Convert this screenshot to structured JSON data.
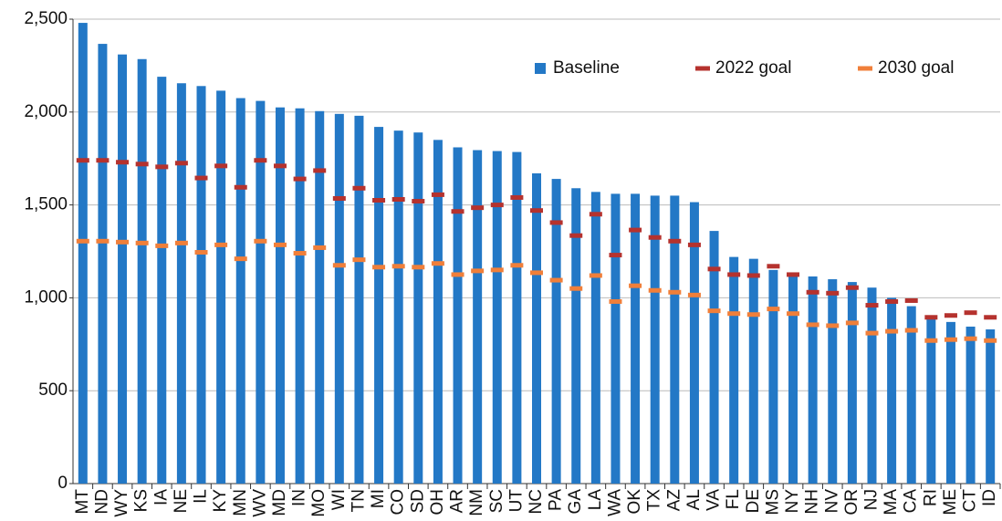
{
  "chart_data": {
    "type": "bar",
    "categories": [
      "MT",
      "ND",
      "WY",
      "KS",
      "IA",
      "NE",
      "IL",
      "KY",
      "MN",
      "WV",
      "MD",
      "IN",
      "MO",
      "WI",
      "TN",
      "MI",
      "CO",
      "SD",
      "OH",
      "AR",
      "NM",
      "SC",
      "UT",
      "NC",
      "PA",
      "GA",
      "LA",
      "WA",
      "OK",
      "TX",
      "AZ",
      "AL",
      "VA",
      "FL",
      "DE",
      "MS",
      "NY",
      "NH",
      "NV",
      "OR",
      "NJ",
      "MA",
      "CA",
      "RI",
      "ME",
      "CT",
      "ID"
    ],
    "series": [
      {
        "name": "Baseline",
        "mark": "bar",
        "color": "#2378c6",
        "values": [
          2480,
          2367,
          2310,
          2285,
          2190,
          2155,
          2140,
          2115,
          2075,
          2060,
          2025,
          2020,
          2005,
          1990,
          1980,
          1920,
          1900,
          1890,
          1850,
          1810,
          1795,
          1790,
          1785,
          1670,
          1640,
          1590,
          1570,
          1560,
          1560,
          1550,
          1550,
          1515,
          1360,
          1220,
          1210,
          1150,
          1125,
          1115,
          1100,
          1085,
          1055,
          1000,
          955,
          905,
          870,
          845,
          830
        ]
      },
      {
        "name": "2022 goal",
        "mark": "dash",
        "color": "#b5322e",
        "values": [
          1740,
          1740,
          1730,
          1720,
          1705,
          1725,
          1645,
          1710,
          1595,
          1740,
          1710,
          1640,
          1685,
          1535,
          1590,
          1525,
          1530,
          1520,
          1555,
          1465,
          1485,
          1500,
          1540,
          1470,
          1405,
          1335,
          1450,
          1230,
          1365,
          1325,
          1305,
          1285,
          1155,
          1125,
          1120,
          1170,
          1125,
          1030,
          1025,
          1055,
          960,
          980,
          985,
          895,
          905,
          920,
          895
        ]
      },
      {
        "name": "2030 goal",
        "mark": "dash",
        "color": "#f07f3a",
        "values": [
          1305,
          1305,
          1300,
          1295,
          1280,
          1295,
          1245,
          1285,
          1210,
          1305,
          1285,
          1240,
          1270,
          1175,
          1205,
          1165,
          1170,
          1165,
          1185,
          1125,
          1145,
          1150,
          1175,
          1135,
          1095,
          1050,
          1120,
          980,
          1065,
          1040,
          1030,
          1015,
          930,
          915,
          910,
          940,
          915,
          855,
          850,
          865,
          810,
          820,
          825,
          770,
          775,
          780,
          770
        ]
      }
    ],
    "ylim": [
      0,
      2500
    ],
    "yticks": [
      0,
      500,
      {
        "value": 1000,
        "label": "1,000"
      },
      {
        "value": 1500,
        "label": "1,500"
      },
      {
        "value": 2000,
        "label": "2,000"
      },
      {
        "value": 2500,
        "label": "2,500"
      }
    ],
    "grid": true,
    "legend": "top-right"
  }
}
